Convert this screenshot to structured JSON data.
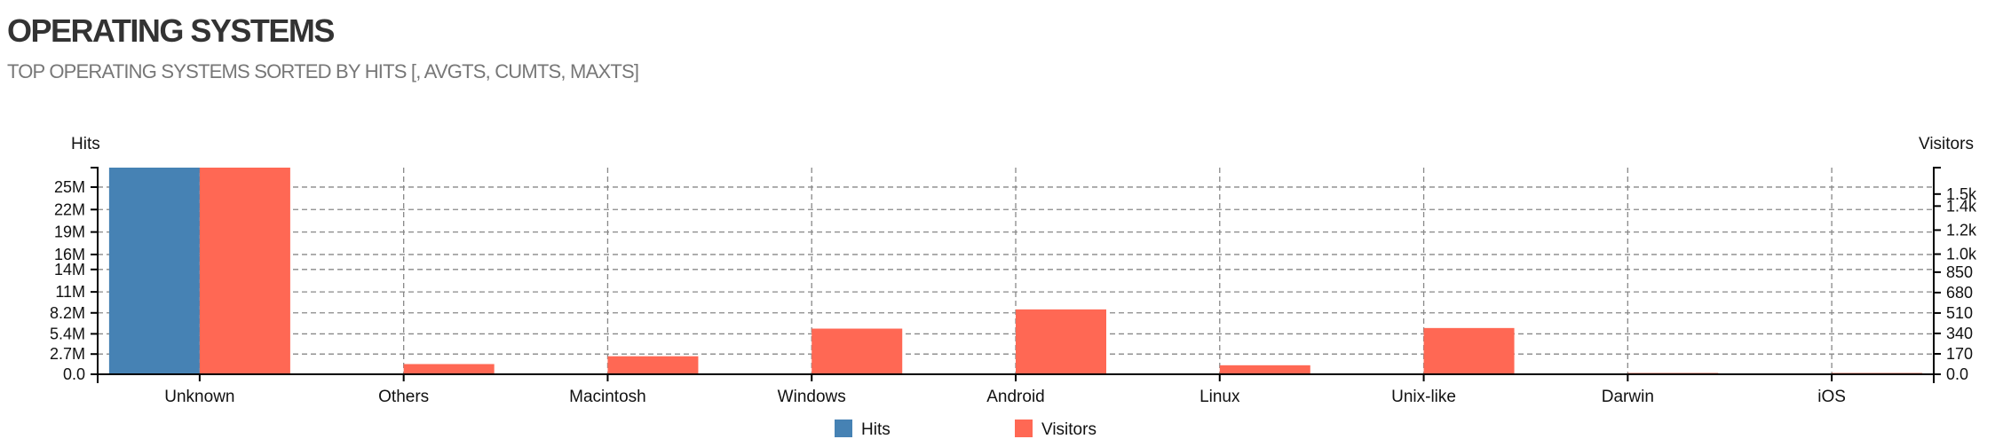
{
  "header": {
    "title": "OPERATING SYSTEMS",
    "subtitle": "TOP OPERATING SYSTEMS SORTED BY HITS [, AVGTS, CUMTS, MAXTS]"
  },
  "chart_data": {
    "type": "bar",
    "categories": [
      "Unknown",
      "Others",
      "Macintosh",
      "Windows",
      "Android",
      "Linux",
      "Unix-like",
      "Darwin",
      "iOS"
    ],
    "series": [
      {
        "name": "Hits",
        "axis": "left",
        "color": "#4682b4",
        "values": [
          27600000,
          0,
          0,
          0,
          0,
          0,
          0,
          0,
          0
        ]
      },
      {
        "name": "Visitors",
        "axis": "right",
        "color": "#ff6854",
        "values": [
          1720,
          85,
          150,
          380,
          540,
          75,
          385,
          10,
          3
        ]
      }
    ],
    "y_left": {
      "label": "Hits",
      "ylim": [
        0,
        27600000
      ],
      "ticks": [
        0,
        2700000,
        5400000,
        8200000,
        11000000,
        14000000,
        16000000,
        19000000,
        22000000,
        25000000
      ],
      "tick_labels": [
        "0.0",
        "2.7M",
        "5.4M",
        "8.2M",
        "11M",
        "14M",
        "16M",
        "19M",
        "22M",
        "25M"
      ]
    },
    "y_right": {
      "label": "Visitors",
      "ylim": [
        0,
        1720
      ],
      "ticks": [
        0,
        170,
        340,
        510,
        680,
        850,
        1000,
        1200,
        1400,
        1500
      ],
      "tick_labels": [
        "0.0",
        "170",
        "340",
        "510",
        "680",
        "850",
        "1.0k",
        "1.2k",
        "1.4k",
        "1.5k"
      ]
    },
    "grid": true,
    "legend": "bottom-center"
  }
}
